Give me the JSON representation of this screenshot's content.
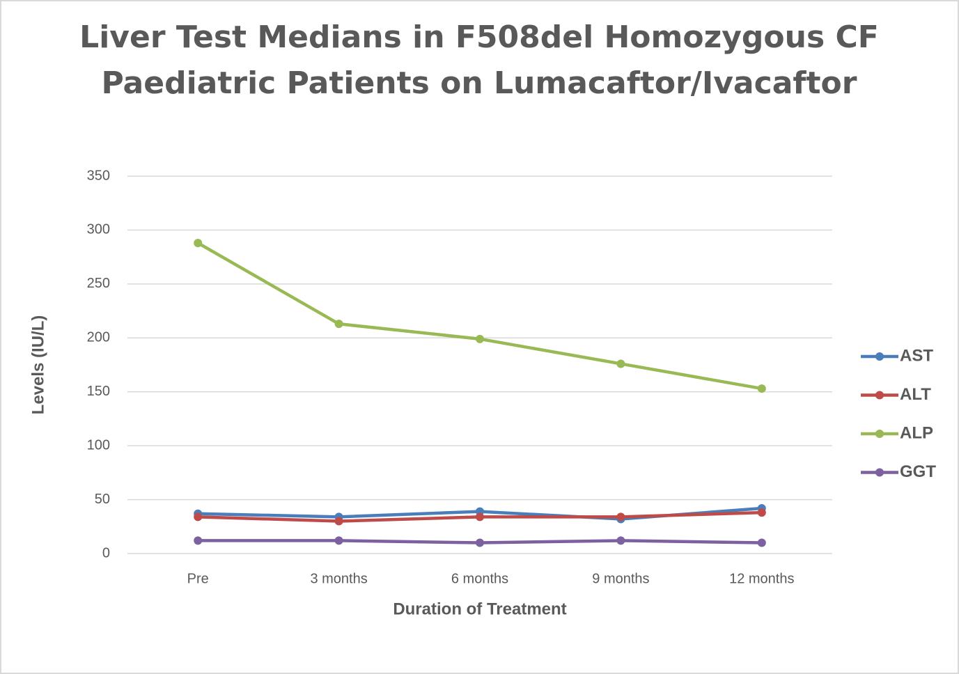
{
  "chart_data": {
    "type": "line",
    "title": [
      "Liver Test Medians in F508del Homozygous CF",
      "Paediatric Patients on Lumacaftor/Ivacaftor"
    ],
    "x_label": "Duration of Treatment",
    "y_label": "Levels (IU/L)",
    "categories": [
      "Pre",
      "3 months",
      "6 months",
      "9 months",
      "12 months"
    ],
    "series": [
      {
        "name": "AST",
        "color": "#4a7ebb",
        "values": [
          37,
          34,
          39,
          32,
          42
        ]
      },
      {
        "name": "ALT",
        "color": "#be4b48",
        "values": [
          34,
          30,
          34,
          34,
          38
        ]
      },
      {
        "name": "ALP",
        "color": "#98b954",
        "values": [
          288,
          213,
          199,
          176,
          153
        ]
      },
      {
        "name": "GGT",
        "color": "#7d60a0",
        "values": [
          12,
          12,
          10,
          12,
          10
        ]
      }
    ],
    "ylim": [
      0,
      350
    ],
    "yticks": [
      0,
      50,
      100,
      150,
      200,
      250,
      300,
      350
    ],
    "grid": true,
    "legend": "right"
  }
}
